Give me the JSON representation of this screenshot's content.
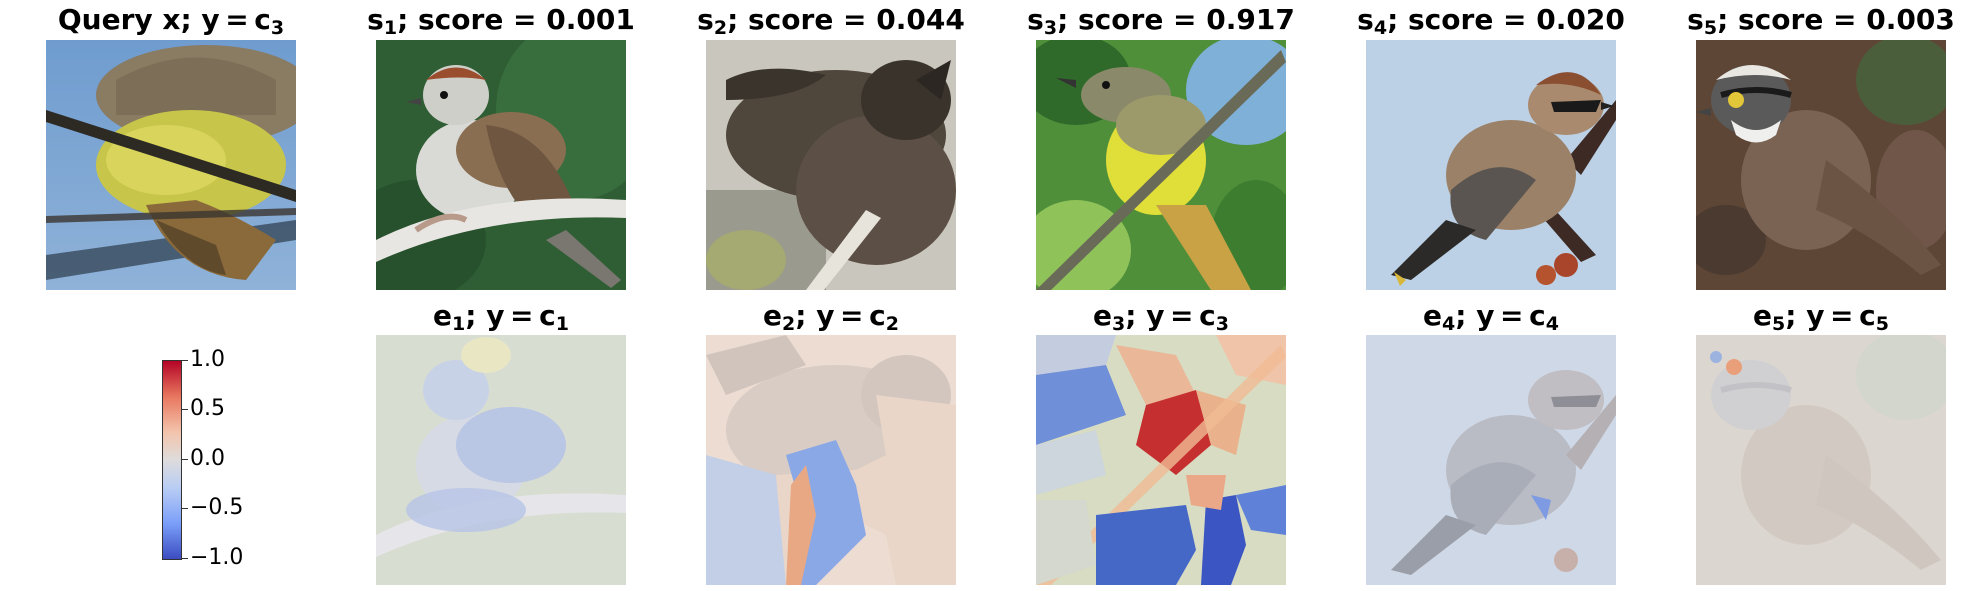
{
  "query": {
    "title_prefix": "Query x; y = c",
    "title_sub": "3"
  },
  "samples": [
    {
      "sym": "s",
      "sub": "1",
      "score_text": "; score = 0.001",
      "score": 0.001,
      "icon": "chipping-sparrow-photo"
    },
    {
      "sym": "s",
      "sub": "2",
      "score_text": "; score = 0.044",
      "score": 0.044,
      "icon": "brown-bird-closeup-photo"
    },
    {
      "sym": "s",
      "sub": "3",
      "score_text": "; score = 0.917",
      "score": 0.917,
      "icon": "flycatcher-on-branch-photo"
    },
    {
      "sym": "s",
      "sub": "4",
      "score_text": "; score = 0.020",
      "score": 0.02,
      "icon": "cedar-waxwing-photo"
    },
    {
      "sym": "s",
      "sub": "5",
      "score_text": "; score = 0.003",
      "score": 0.003,
      "icon": "white-throated-sparrow-photo"
    }
  ],
  "explanations": [
    {
      "sym": "e",
      "sub": "1",
      "mid": "; y = c",
      "csub": "1"
    },
    {
      "sym": "e",
      "sub": "2",
      "mid": "; y = c",
      "csub": "2"
    },
    {
      "sym": "e",
      "sub": "3",
      "mid": "; y = c",
      "csub": "3"
    },
    {
      "sym": "e",
      "sub": "4",
      "mid": "; y = c",
      "csub": "4"
    },
    {
      "sym": "e",
      "sub": "5",
      "mid": "; y = c",
      "csub": "5"
    }
  ],
  "colorbar": {
    "ticks": [
      "1.0",
      "0.5",
      "0.0",
      "−0.5",
      "−1.0"
    ],
    "max": 1.0,
    "min": -1.0,
    "colormap": "coolwarm",
    "colors": {
      "high": "#b40426",
      "mid": "#dddcdc",
      "low": "#3b4cc0"
    }
  }
}
